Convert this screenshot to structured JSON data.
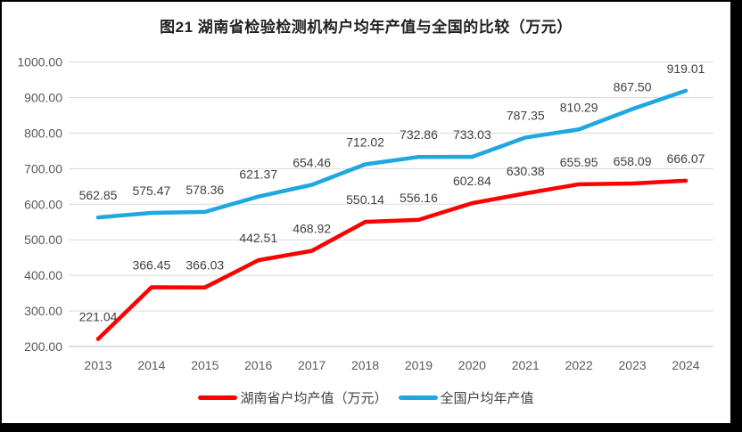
{
  "chart_data": {
    "type": "line",
    "title": "图21 湖南省检验检测机构户均年产值与全国的比较（万元）",
    "categories": [
      "2013",
      "2014",
      "2015",
      "2016",
      "2017",
      "2018",
      "2019",
      "2020",
      "2021",
      "2022",
      "2023",
      "2024"
    ],
    "series": [
      {
        "name": "湖南省户均产值（万元）",
        "color": "#FF0000",
        "values": [
          221.04,
          366.45,
          366.03,
          442.51,
          468.92,
          550.14,
          556.16,
          602.84,
          630.38,
          655.95,
          658.09,
          666.07
        ]
      },
      {
        "name": "全国户均年产值",
        "color": "#1EA7E1",
        "values": [
          562.85,
          575.47,
          578.36,
          621.37,
          654.46,
          712.02,
          732.86,
          733.03,
          787.35,
          810.29,
          867.5,
          919.01
        ]
      }
    ],
    "ylim": [
      200,
      1000
    ],
    "ytick_step": 100,
    "ytick_format": "2dp",
    "data_label_format": "2dp",
    "grid": true,
    "legend_position": "bottom",
    "colors": {
      "gridline": "#D9D9D9",
      "axis_line": "#BFBFBF",
      "tick_text": "#595959",
      "data_label_text": "#3F3F3F",
      "frame": "#000000",
      "background": "#FFFFFF"
    }
  }
}
